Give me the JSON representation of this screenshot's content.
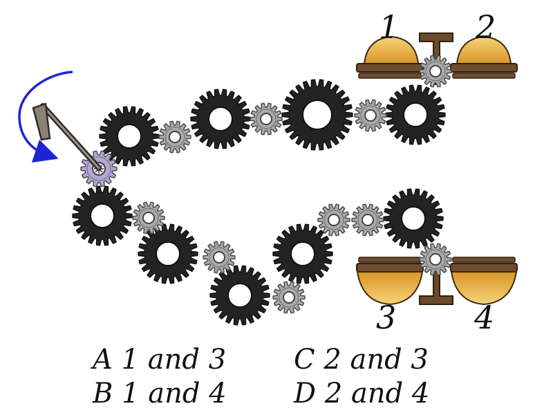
{
  "figure": {
    "colors": {
      "big_gear": "#232323",
      "small_gear": "#a9a9a9",
      "driver_gear": "#b3a7d6",
      "arrow": "#1f23d6",
      "hammer_wood": "#6b4a2b",
      "dome_gold": "#e9b43a",
      "dome_base": "#6f4c2e"
    },
    "icons": {
      "crank": "crank-handle-icon",
      "rotation": "clockwise-arrow-icon",
      "hammer": "hammer-icon",
      "dome": "bell-dome-icon"
    },
    "bell_labels": [
      "1",
      "2",
      "3",
      "4"
    ]
  },
  "answers": [
    {
      "letter": "A",
      "text": "1 and 3"
    },
    {
      "letter": "B",
      "text": "1 and 4"
    },
    {
      "letter": "C",
      "text": "2 and 3"
    },
    {
      "letter": "D",
      "text": "2 and 4"
    }
  ]
}
